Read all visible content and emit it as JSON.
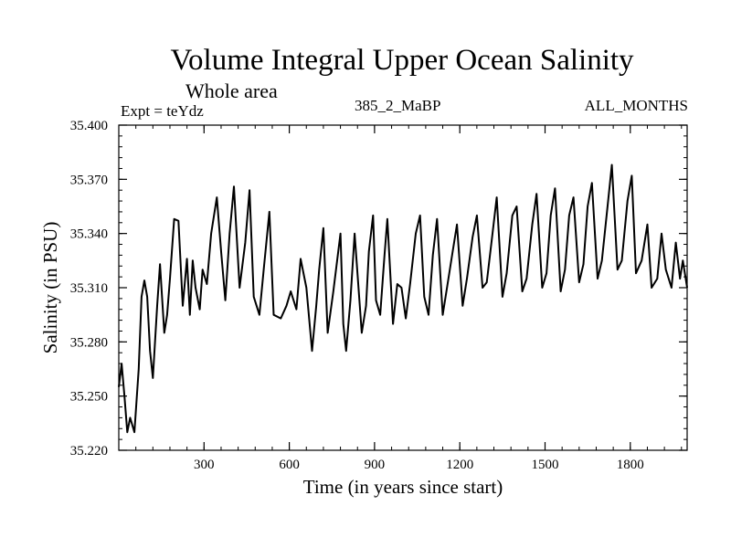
{
  "header": {
    "title": "Volume Integral Upper Ocean Salinity",
    "subtitle": "Whole area",
    "expt": "Expt = teYdz",
    "run": "385_2_MaBP",
    "months": "ALL_MONTHS"
  },
  "chart_data": {
    "type": "line",
    "title": "Volume Integral Upper Ocean Salinity",
    "subtitle": "Whole area",
    "xlabel": "Time (in years since start)",
    "ylabel": "Salinity (in PSU)",
    "xlim": [
      0,
      2000
    ],
    "ylim": [
      35.22,
      35.4
    ],
    "xticks": [
      300,
      600,
      900,
      1200,
      1500,
      1800
    ],
    "xtick_labels": [
      "300",
      "600",
      "900",
      "1200",
      "1500",
      "1800"
    ],
    "yticks": [
      35.22,
      35.25,
      35.28,
      35.31,
      35.34,
      35.37,
      35.4
    ],
    "ytick_labels": [
      "35.220",
      "35.250",
      "35.280",
      "35.310",
      "35.340",
      "35.370",
      "35.400"
    ],
    "grid": false,
    "series": [
      {
        "name": "Salinity",
        "x": [
          0,
          10,
          20,
          30,
          40,
          55,
          70,
          80,
          90,
          100,
          110,
          120,
          135,
          145,
          160,
          170,
          180,
          195,
          210,
          225,
          240,
          250,
          260,
          270,
          285,
          295,
          310,
          325,
          345,
          360,
          375,
          390,
          405,
          425,
          445,
          460,
          475,
          495,
          510,
          530,
          545,
          570,
          590,
          605,
          625,
          640,
          660,
          680,
          695,
          705,
          720,
          735,
          755,
          780,
          790,
          800,
          815,
          830,
          840,
          855,
          870,
          880,
          895,
          905,
          920,
          935,
          945,
          965,
          980,
          995,
          1010,
          1025,
          1045,
          1060,
          1075,
          1090,
          1105,
          1120,
          1140,
          1155,
          1175,
          1190,
          1210,
          1225,
          1245,
          1260,
          1280,
          1295,
          1315,
          1330,
          1350,
          1365,
          1385,
          1400,
          1420,
          1435,
          1455,
          1470,
          1490,
          1505,
          1520,
          1535,
          1555,
          1570,
          1585,
          1600,
          1620,
          1635,
          1650,
          1665,
          1685,
          1700,
          1720,
          1735,
          1755,
          1770,
          1790,
          1805,
          1820,
          1840,
          1860,
          1875,
          1895,
          1910,
          1925,
          1945,
          1960,
          1975,
          1985,
          2000
        ],
        "values": [
          35.255,
          35.268,
          35.25,
          35.23,
          35.238,
          35.23,
          35.265,
          35.305,
          35.314,
          35.305,
          35.275,
          35.26,
          35.3,
          35.323,
          35.285,
          35.295,
          35.315,
          35.348,
          35.347,
          35.3,
          35.326,
          35.295,
          35.325,
          35.31,
          35.298,
          35.32,
          35.312,
          35.34,
          35.36,
          35.33,
          35.303,
          35.34,
          35.366,
          35.31,
          35.335,
          35.364,
          35.305,
          35.295,
          35.32,
          35.352,
          35.295,
          35.293,
          35.3,
          35.308,
          35.298,
          35.326,
          35.31,
          35.275,
          35.3,
          35.32,
          35.343,
          35.285,
          35.308,
          35.34,
          35.29,
          35.275,
          35.303,
          35.34,
          35.318,
          35.285,
          35.3,
          35.33,
          35.35,
          35.303,
          35.295,
          35.328,
          35.348,
          35.29,
          35.312,
          35.31,
          35.293,
          35.312,
          35.34,
          35.35,
          35.305,
          35.295,
          35.328,
          35.348,
          35.295,
          35.31,
          35.33,
          35.345,
          35.3,
          35.315,
          35.338,
          35.35,
          35.31,
          35.313,
          35.34,
          35.36,
          35.305,
          35.318,
          35.35,
          35.355,
          35.308,
          35.315,
          35.345,
          35.362,
          35.31,
          35.318,
          35.35,
          35.365,
          35.308,
          35.32,
          35.35,
          35.36,
          35.313,
          35.323,
          35.355,
          35.368,
          35.315,
          35.325,
          35.355,
          35.378,
          35.32,
          35.325,
          35.358,
          35.372,
          35.318,
          35.325,
          35.345,
          35.31,
          35.315,
          35.34,
          35.32,
          35.31,
          35.335,
          35.315,
          35.325,
          35.31
        ]
      }
    ]
  }
}
